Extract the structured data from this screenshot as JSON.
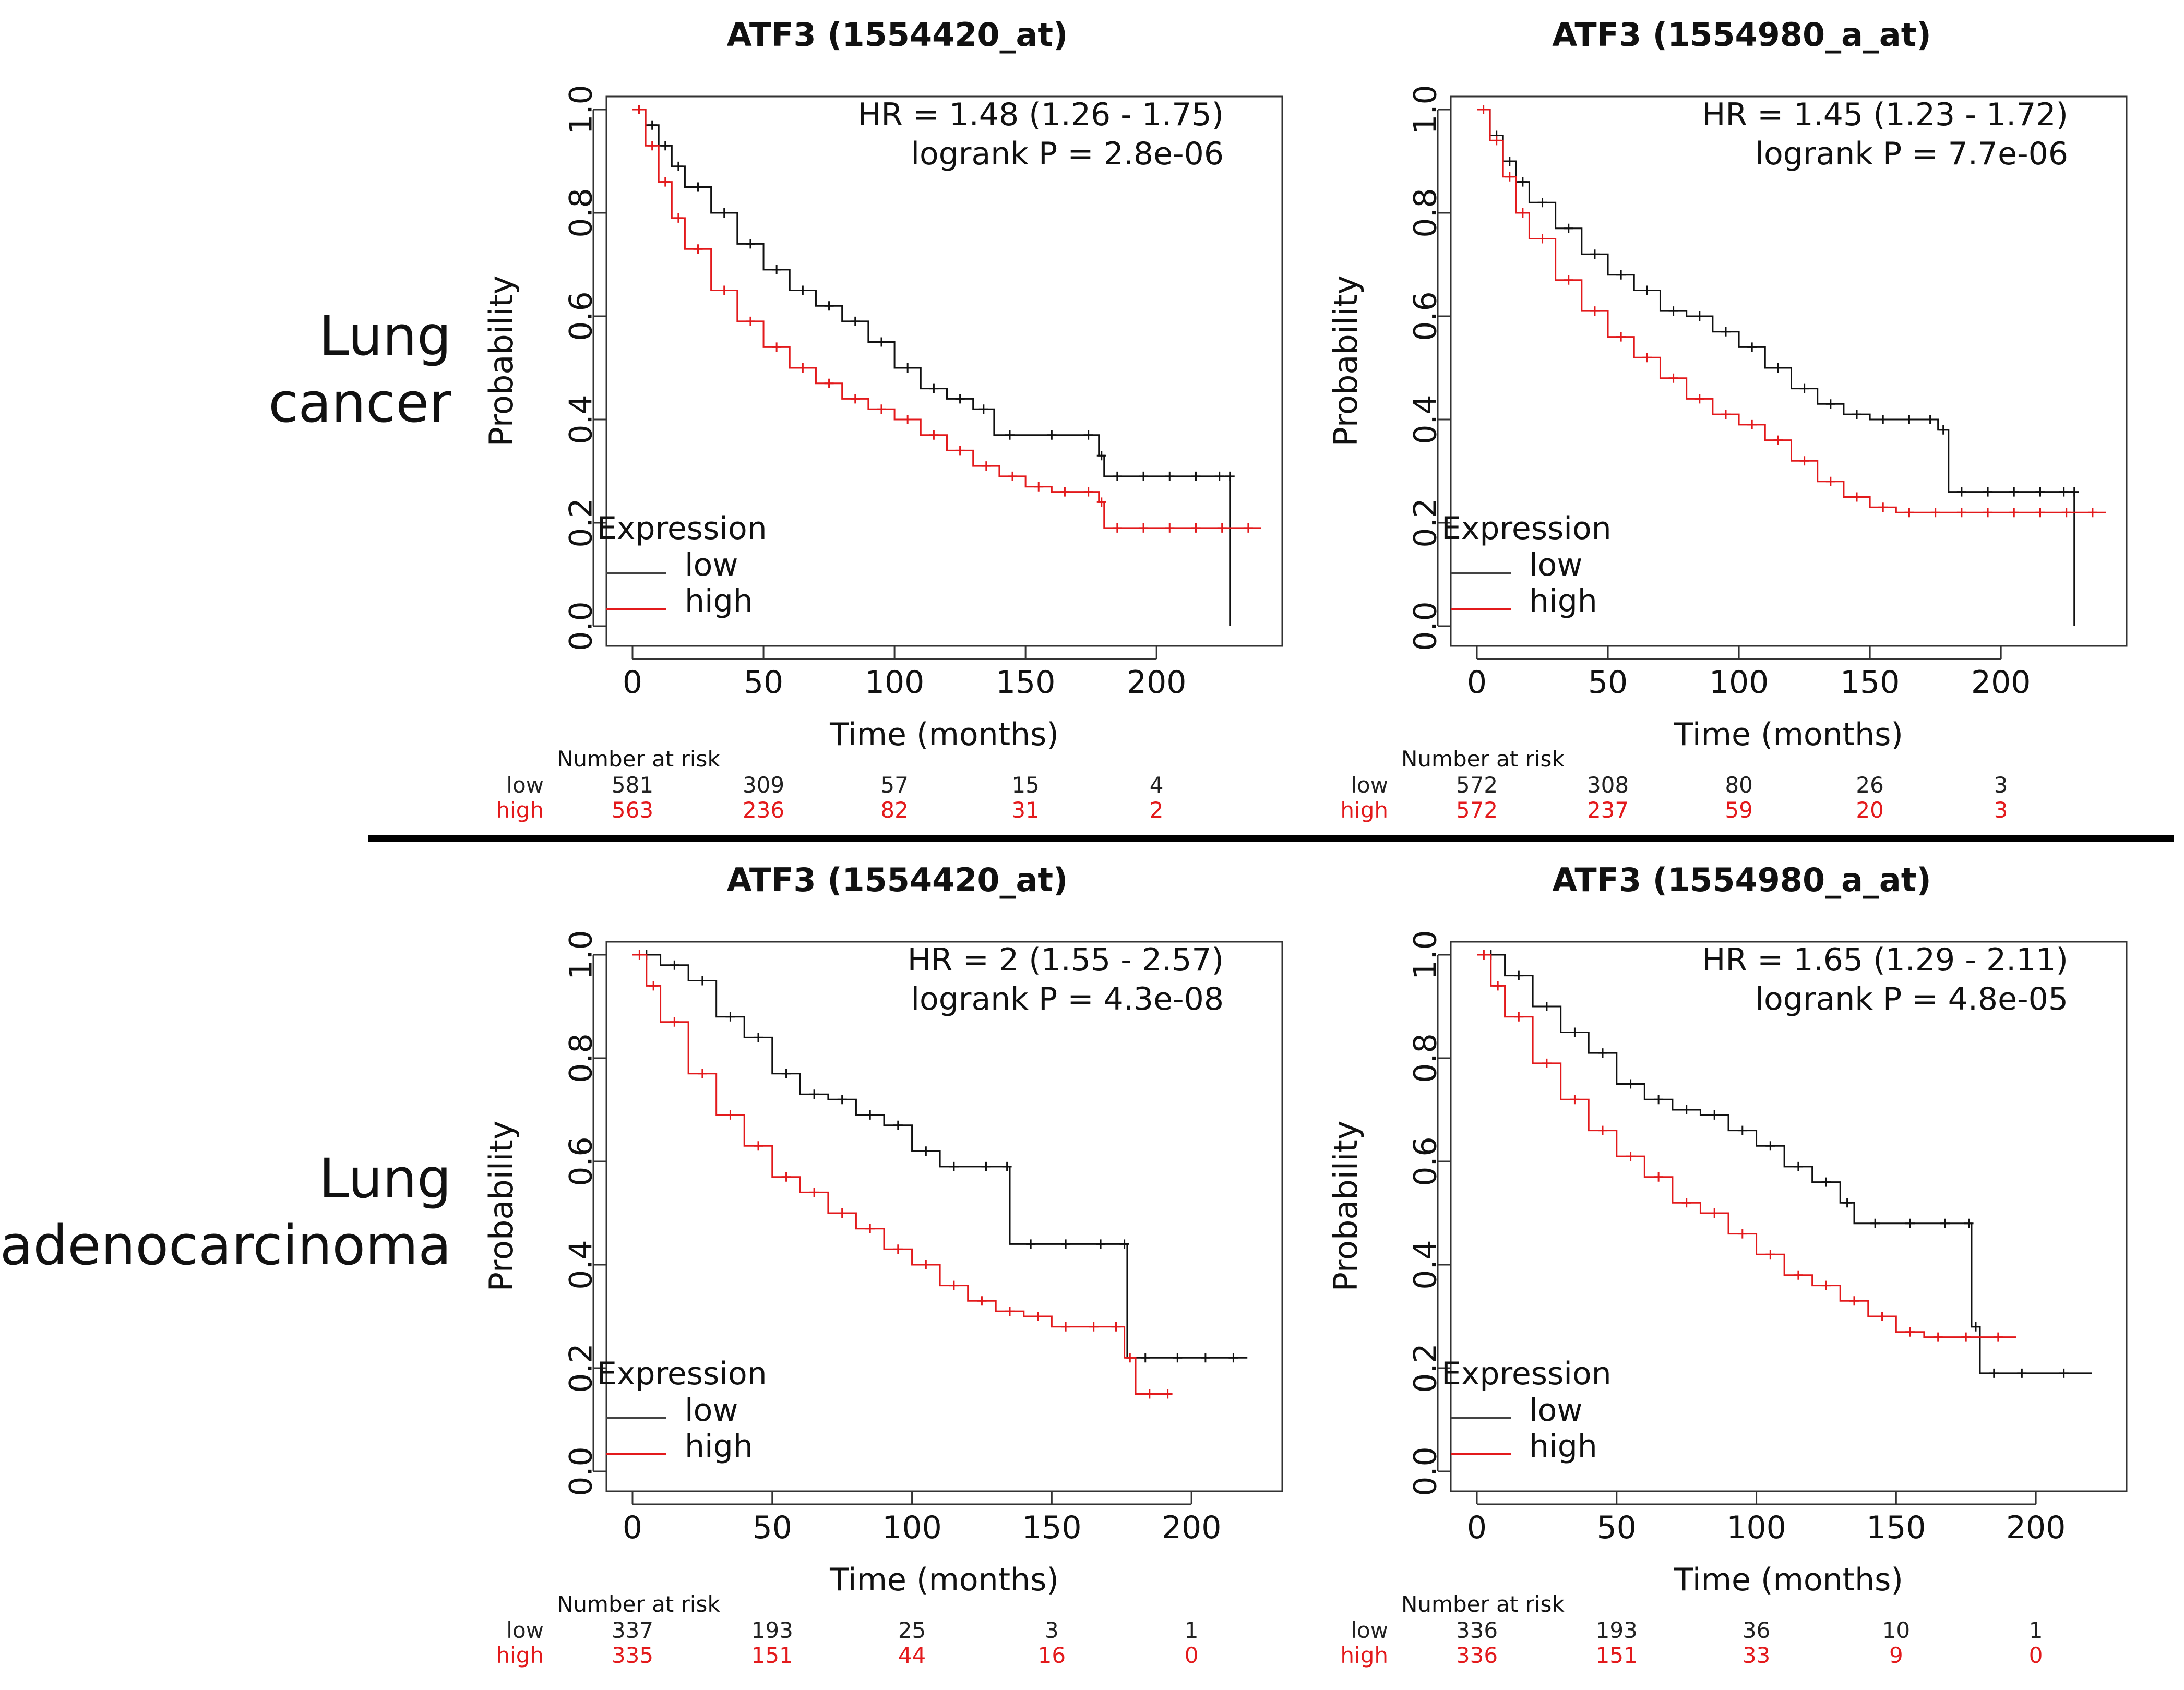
{
  "row_labels": [
    "Lung\ncancer",
    "Lung\nadenocarcinoma"
  ],
  "colors": {
    "low": "#111111",
    "high": "#e31a1c",
    "axis": "#333333"
  },
  "chart_data": [
    {
      "type": "line",
      "title": "ATF3 (1554420_at)",
      "xlabel": "Time (months)",
      "ylabel": "Probability",
      "xlim": [
        0,
        240
      ],
      "ylim": [
        0,
        1
      ],
      "xticks": [
        0,
        50,
        100,
        150,
        200
      ],
      "yticks": [
        "0.0",
        "0.2",
        "0.4",
        "0.6",
        "0.8",
        "1.0"
      ],
      "hr": "HR = 1.48 (1.26 - 1.75)",
      "logrank": "logrank P = 2.8e-06",
      "legend": {
        "title": "Expression",
        "low": "low",
        "high": "high"
      },
      "series": [
        {
          "name": "low",
          "x": [
            0,
            5,
            10,
            15,
            20,
            30,
            40,
            50,
            60,
            70,
            80,
            90,
            100,
            110,
            120,
            130,
            138,
            150,
            170,
            178,
            180,
            190,
            200,
            210,
            220,
            228,
            228
          ],
          "y": [
            1.0,
            0.97,
            0.93,
            0.89,
            0.85,
            0.8,
            0.74,
            0.69,
            0.65,
            0.62,
            0.59,
            0.55,
            0.5,
            0.46,
            0.44,
            0.42,
            0.37,
            0.37,
            0.37,
            0.33,
            0.29,
            0.29,
            0.29,
            0.29,
            0.29,
            0.29,
            0.0
          ]
        },
        {
          "name": "high",
          "x": [
            0,
            5,
            10,
            15,
            20,
            30,
            40,
            50,
            60,
            70,
            80,
            90,
            100,
            110,
            120,
            130,
            140,
            150,
            160,
            170,
            178,
            180,
            190,
            200,
            210,
            220,
            230,
            240
          ],
          "y": [
            1.0,
            0.93,
            0.86,
            0.79,
            0.73,
            0.65,
            0.59,
            0.54,
            0.5,
            0.47,
            0.44,
            0.42,
            0.4,
            0.37,
            0.34,
            0.31,
            0.29,
            0.27,
            0.26,
            0.26,
            0.24,
            0.19,
            0.19,
            0.19,
            0.19,
            0.19,
            0.19,
            0.19
          ]
        }
      ],
      "risk": {
        "header": "Number at risk",
        "low_label": "low",
        "high_label": "high",
        "low": [
          "581",
          "309",
          "57",
          "15",
          "4"
        ],
        "high": [
          "563",
          "236",
          "82",
          "31",
          "2"
        ]
      }
    },
    {
      "type": "line",
      "title": "ATF3 (1554980_a_at)",
      "xlabel": "Time (months)",
      "ylabel": "Probability",
      "xlim": [
        0,
        240
      ],
      "ylim": [
        0,
        1
      ],
      "xticks": [
        0,
        50,
        100,
        150,
        200
      ],
      "yticks": [
        "0.0",
        "0.2",
        "0.4",
        "0.6",
        "0.8",
        "1.0"
      ],
      "hr": "HR = 1.45 (1.23 - 1.72)",
      "logrank": "logrank P = 7.7e-06",
      "legend": {
        "title": "Expression",
        "low": "low",
        "high": "high"
      },
      "series": [
        {
          "name": "low",
          "x": [
            0,
            5,
            10,
            15,
            20,
            30,
            40,
            50,
            60,
            70,
            80,
            90,
            100,
            110,
            120,
            130,
            140,
            150,
            160,
            170,
            176,
            180,
            190,
            200,
            210,
            220,
            228,
            228
          ],
          "y": [
            1.0,
            0.95,
            0.9,
            0.86,
            0.82,
            0.77,
            0.72,
            0.68,
            0.65,
            0.61,
            0.6,
            0.57,
            0.54,
            0.5,
            0.46,
            0.43,
            0.41,
            0.4,
            0.4,
            0.4,
            0.38,
            0.26,
            0.26,
            0.26,
            0.26,
            0.26,
            0.26,
            0.0
          ]
        },
        {
          "name": "high",
          "x": [
            0,
            5,
            10,
            15,
            20,
            30,
            40,
            50,
            60,
            70,
            80,
            90,
            100,
            110,
            120,
            130,
            140,
            150,
            160,
            170,
            180,
            190,
            200,
            210,
            220,
            230,
            240
          ],
          "y": [
            1.0,
            0.94,
            0.87,
            0.8,
            0.75,
            0.67,
            0.61,
            0.56,
            0.52,
            0.48,
            0.44,
            0.41,
            0.39,
            0.36,
            0.32,
            0.28,
            0.25,
            0.23,
            0.22,
            0.22,
            0.22,
            0.22,
            0.22,
            0.22,
            0.22,
            0.22,
            0.22
          ]
        }
      ],
      "risk": {
        "header": "Number at risk",
        "low_label": "low",
        "high_label": "high",
        "low": [
          "572",
          "308",
          "80",
          "26",
          "3"
        ],
        "high": [
          "572",
          "237",
          "59",
          "20",
          "3"
        ]
      }
    },
    {
      "type": "line",
      "title": "ATF3 (1554420_at)",
      "xlabel": "Time (months)",
      "ylabel": "Probability",
      "xlim": [
        0,
        225
      ],
      "ylim": [
        0,
        1
      ],
      "xticks": [
        0,
        50,
        100,
        150,
        200
      ],
      "yticks": [
        "0.0",
        "0.2",
        "0.4",
        "0.6",
        "0.8",
        "1.0"
      ],
      "hr": "HR = 2 (1.55 - 2.57)",
      "logrank": "logrank P = 4.3e-08",
      "legend": {
        "title": "Expression",
        "low": "low",
        "high": "high"
      },
      "series": [
        {
          "name": "low",
          "x": [
            0,
            10,
            20,
            30,
            40,
            50,
            60,
            70,
            80,
            90,
            100,
            110,
            120,
            133,
            135,
            150,
            160,
            175,
            177,
            190,
            200,
            210,
            220
          ],
          "y": [
            1.0,
            0.98,
            0.95,
            0.88,
            0.84,
            0.77,
            0.73,
            0.72,
            0.69,
            0.67,
            0.62,
            0.59,
            0.59,
            0.59,
            0.44,
            0.44,
            0.44,
            0.44,
            0.22,
            0.22,
            0.22,
            0.22,
            0.22
          ]
        },
        {
          "name": "high",
          "x": [
            0,
            5,
            10,
            20,
            30,
            40,
            50,
            60,
            70,
            80,
            90,
            100,
            110,
            120,
            130,
            140,
            150,
            160,
            170,
            176,
            180,
            190,
            193
          ],
          "y": [
            1.0,
            0.94,
            0.87,
            0.77,
            0.69,
            0.63,
            0.57,
            0.54,
            0.5,
            0.47,
            0.43,
            0.4,
            0.36,
            0.33,
            0.31,
            0.3,
            0.28,
            0.28,
            0.28,
            0.22,
            0.15,
            0.15,
            0.15
          ]
        }
      ],
      "risk": {
        "header": "Number at risk",
        "low_label": "low",
        "high_label": "high",
        "low": [
          "337",
          "193",
          "25",
          "3",
          "1"
        ],
        "high": [
          "335",
          "151",
          "44",
          "16",
          "0"
        ]
      }
    },
    {
      "type": "line",
      "title": "ATF3 (1554980_a_at)",
      "xlabel": "Time (months)",
      "ylabel": "Probability",
      "xlim": [
        0,
        225
      ],
      "ylim": [
        0,
        1
      ],
      "xticks": [
        0,
        50,
        100,
        150,
        200
      ],
      "yticks": [
        "0.0",
        "0.2",
        "0.4",
        "0.6",
        "0.8",
        "1.0"
      ],
      "hr": "HR = 1.65 (1.29 - 2.11)",
      "logrank": "logrank P = 4.8e-05",
      "legend": {
        "title": "Expression",
        "low": "low",
        "high": "high"
      },
      "series": [
        {
          "name": "low",
          "x": [
            0,
            10,
            20,
            30,
            40,
            50,
            60,
            70,
            80,
            90,
            100,
            110,
            120,
            130,
            135,
            150,
            160,
            175,
            177,
            180,
            190,
            200,
            220
          ],
          "y": [
            1.0,
            0.96,
            0.9,
            0.85,
            0.81,
            0.75,
            0.72,
            0.7,
            0.69,
            0.66,
            0.63,
            0.59,
            0.56,
            0.52,
            0.48,
            0.48,
            0.48,
            0.48,
            0.28,
            0.19,
            0.19,
            0.19,
            0.19
          ]
        },
        {
          "name": "high",
          "x": [
            0,
            5,
            10,
            20,
            30,
            40,
            50,
            60,
            70,
            80,
            90,
            100,
            110,
            120,
            130,
            140,
            150,
            160,
            170,
            180,
            193
          ],
          "y": [
            1.0,
            0.94,
            0.88,
            0.79,
            0.72,
            0.66,
            0.61,
            0.57,
            0.52,
            0.5,
            0.46,
            0.42,
            0.38,
            0.36,
            0.33,
            0.3,
            0.27,
            0.26,
            0.26,
            0.26,
            0.26
          ]
        }
      ],
      "risk": {
        "header": "Number at risk",
        "low_label": "low",
        "high_label": "high",
        "low": [
          "336",
          "193",
          "36",
          "10",
          "1"
        ],
        "high": [
          "336",
          "151",
          "33",
          "9",
          "0"
        ]
      }
    }
  ]
}
